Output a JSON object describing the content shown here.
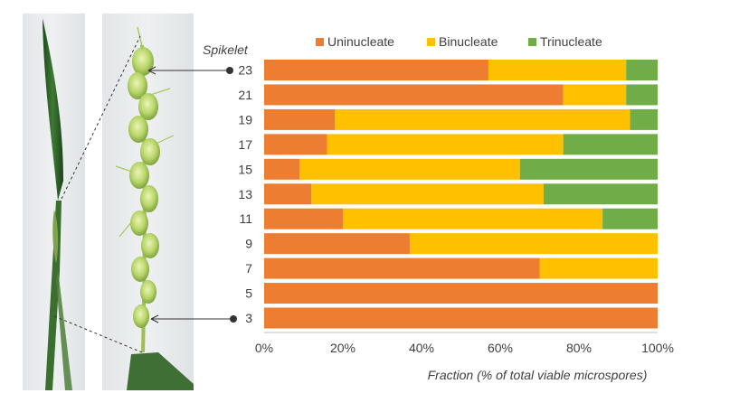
{
  "chart_data": {
    "type": "bar",
    "orientation": "horizontal",
    "stacked": true,
    "y_title": "Spikelet",
    "xlabel": "Fraction (% of total viable microspores)",
    "categories": [
      "23",
      "21",
      "19",
      "17",
      "15",
      "13",
      "11",
      "9",
      "7",
      "5",
      "3"
    ],
    "series": [
      {
        "name": "Uninucleate",
        "color": "#ED7D31",
        "values": [
          57,
          76,
          18,
          16,
          9,
          12,
          20,
          37,
          70,
          100,
          100
        ]
      },
      {
        "name": "Binucleate",
        "color": "#FFC000",
        "values": [
          35,
          16,
          75,
          60,
          56,
          59,
          66,
          63,
          30,
          0,
          0
        ]
      },
      {
        "name": "Trinucleate",
        "color": "#70AD47",
        "values": [
          8,
          8,
          7,
          24,
          35,
          29,
          14,
          0,
          0,
          0,
          0
        ]
      }
    ],
    "xlim": [
      0,
      100
    ],
    "xticks": [
      "0%",
      "20%",
      "40%",
      "60%",
      "80%",
      "100%"
    ],
    "legend_position": "top",
    "grid": false,
    "photo_markers": [
      "23",
      "3"
    ]
  }
}
